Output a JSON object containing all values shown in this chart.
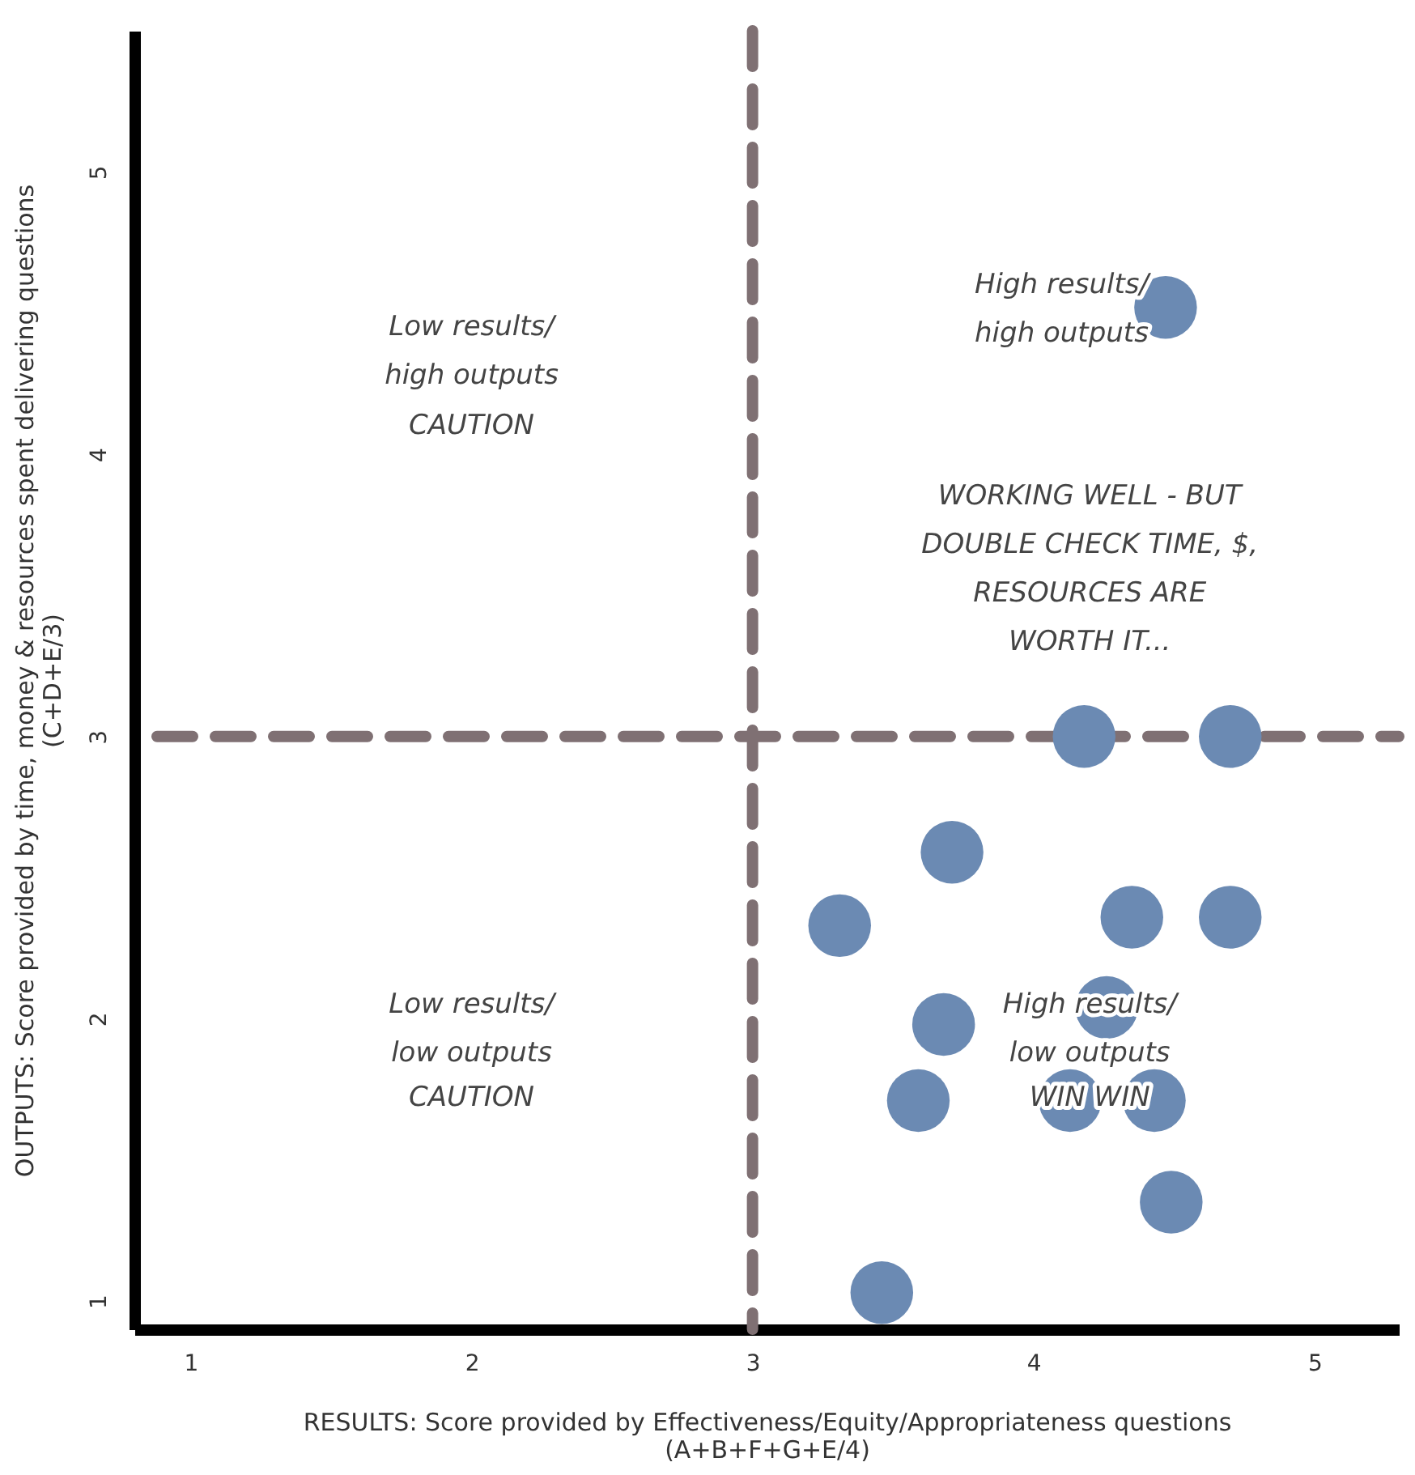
{
  "chart_data": {
    "type": "scatter",
    "xlabel": "RESULTS: Score provided by Effectiveness/Equity/Appropriateness questions\n(A+B+F+G+E/4)",
    "ylabel": "OUTPUTS: Score provided by time, money & resources spent delivering questions\n(C+D+E/3)",
    "x": [
      4.47,
      4.18,
      4.7,
      3.71,
      3.31,
      4.35,
      4.7,
      4.26,
      3.68,
      3.59,
      4.13,
      4.43,
      4.49,
      3.46
    ],
    "series": [
      {
        "color": "#6b8ab3",
        "values": [
          4.52,
          3.0,
          3.0,
          2.59,
          2.33,
          2.36,
          2.36,
          2.04,
          1.98,
          1.71,
          1.71,
          1.71,
          1.35,
          1.03
        ]
      }
    ],
    "xlim": [
      0.8,
      5.3
    ],
    "ylim": [
      0.9,
      5.5
    ],
    "xticks": [
      1,
      2,
      3,
      4,
      5
    ],
    "yticks": [
      1,
      2,
      3,
      4,
      5
    ],
    "grid": false,
    "marker": "circle",
    "ref_lines": [
      {
        "axis": "x",
        "value": 3,
        "color": "#7f7073",
        "line_style": "dashed"
      },
      {
        "axis": "y",
        "value": 3,
        "color": "#7f7073",
        "line_style": "dashed"
      }
    ],
    "annotations": [
      "Low results/\nhigh outputs",
      "CAUTION",
      "High results/\nhigh outputs",
      "WORKING WELL - BUT\nDOUBLE CHECK TIME, $,\nRESOURCES ARE\nWORTH IT...",
      "Low results/\nlow outputs",
      "CAUTION",
      "High results/\nlow outputs",
      "WIN WIN"
    ]
  }
}
